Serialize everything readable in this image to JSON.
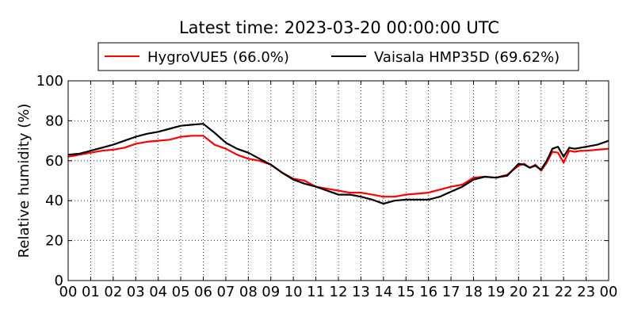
{
  "chart_data": {
    "type": "line",
    "title": "Latest time: 2023-03-20 00:00:00 UTC",
    "xlabel": "",
    "ylabel": "Relative humidity (%)",
    "xlim": [
      0,
      24
    ],
    "ylim": [
      0,
      100
    ],
    "grid": true,
    "legend_position": "top",
    "x_tick_labels": [
      "00",
      "01",
      "02",
      "03",
      "04",
      "05",
      "06",
      "07",
      "08",
      "09",
      "10",
      "11",
      "12",
      "13",
      "14",
      "15",
      "16",
      "17",
      "18",
      "19",
      "20",
      "21",
      "22",
      "23",
      "00"
    ],
    "y_ticks": [
      0,
      20,
      40,
      60,
      80,
      100
    ],
    "x": [
      0,
      0.5,
      1,
      1.5,
      2,
      2.5,
      3,
      3.5,
      4,
      4.5,
      5,
      5.5,
      6,
      6.5,
      7,
      7.5,
      8,
      8.5,
      9,
      9.5,
      10,
      10.5,
      11,
      11.5,
      12,
      12.5,
      13,
      13.5,
      14,
      14.5,
      15,
      15.5,
      16,
      16.5,
      17,
      17.5,
      18,
      18.5,
      19,
      19.5,
      20,
      20.25,
      20.5,
      20.75,
      21,
      21.25,
      21.5,
      21.75,
      22,
      22.25,
      22.5,
      22.75,
      23,
      23.5,
      24
    ],
    "series": [
      {
        "name": "HygroVUE5 (66.0%)",
        "color": "#ff0000",
        "values": [
          62,
          63,
          64,
          65,
          65.5,
          66.5,
          68.5,
          69.5,
          70,
          70.5,
          72,
          72.5,
          72.5,
          68,
          66,
          63,
          61,
          60,
          58,
          54,
          51,
          50,
          47,
          46,
          45,
          44,
          44,
          43,
          42,
          42,
          43,
          43.5,
          44,
          45.5,
          47,
          48,
          51.5,
          52,
          51.5,
          53,
          57.5,
          58.5,
          56.5,
          58,
          55,
          59,
          64.5,
          64,
          59,
          65,
          64.5,
          65,
          65,
          65.5,
          66
        ]
      },
      {
        "name": "Vaisala HMP35D (69.62%)",
        "color": "#000000",
        "values": [
          63,
          63.5,
          65,
          66.5,
          68,
          70,
          72,
          73.5,
          74.5,
          76,
          77.5,
          78,
          78.5,
          74,
          69,
          66,
          64,
          61,
          58,
          54,
          50.5,
          48.5,
          47,
          45,
          43,
          43,
          42,
          40.5,
          38.5,
          40,
          40.5,
          40.5,
          40.5,
          42,
          44.5,
          47,
          50.5,
          52,
          51.5,
          52.5,
          58.5,
          58,
          56.5,
          57.5,
          55.5,
          60,
          66,
          67,
          62,
          66.5,
          66,
          66.5,
          67,
          68,
          70
        ]
      }
    ]
  }
}
